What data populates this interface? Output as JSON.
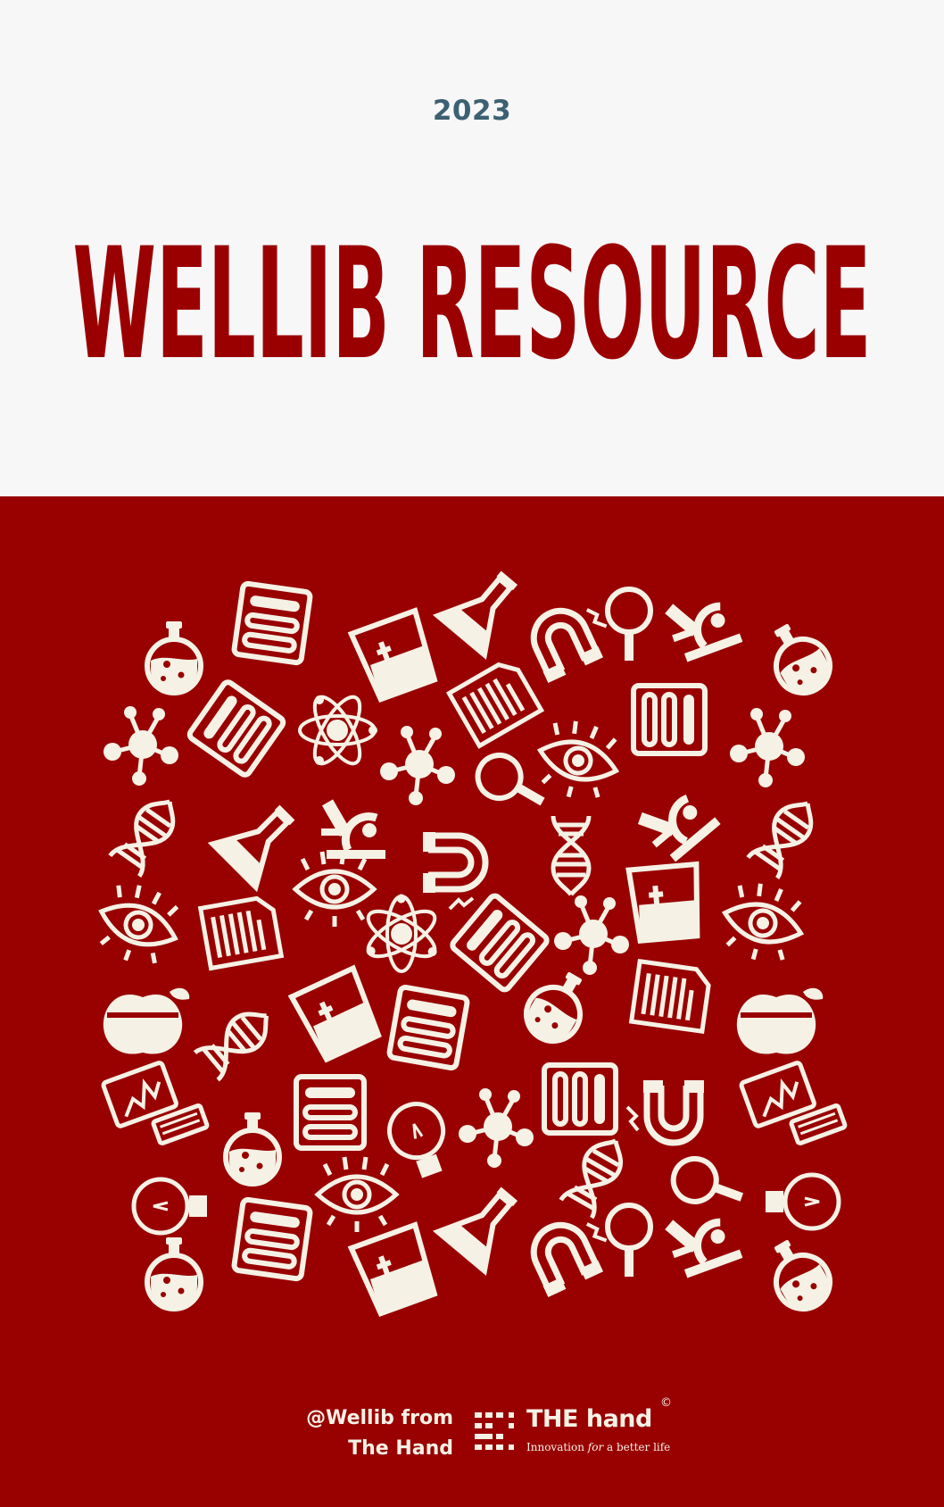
{
  "cover": {
    "year": "2023",
    "title": "WELLIB RESOURCE"
  },
  "footer": {
    "credit_line1": "@Wellib from",
    "credit_line2": "The Hand",
    "logo_name": "THE hand",
    "logo_copyright": "©",
    "logo_tagline_pre": "Innovation ",
    "logo_tagline_em": "for",
    "logo_tagline_post": " a better life"
  },
  "colors": {
    "background_top": "#f7f7f8",
    "brand_red": "#990000",
    "year_blue": "#3d6072",
    "icon_cream": "#f5f1e5"
  },
  "icons": [
    "flask-icon",
    "test-tube-rack-icon",
    "beaker-icon",
    "conical-flask-icon",
    "magnet-icon",
    "magnifier-icon",
    "microscope-icon",
    "molecule-icon",
    "atom-icon",
    "document-icon",
    "eye-icon",
    "dna-icon",
    "apple-icon",
    "computer-icon",
    "light-bulb-icon"
  ]
}
